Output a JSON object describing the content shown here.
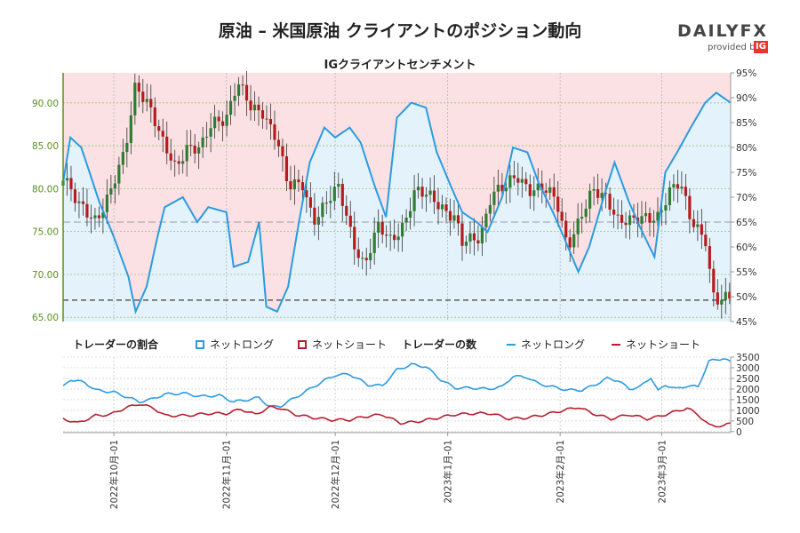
{
  "header": {
    "title": "原油 – 米国原油 クライアントのポジション動向",
    "subtitle": "IGクライアントセンチメント"
  },
  "logo": {
    "word_a": "DAILY",
    "word_b": "FX",
    "provided_by": "provided by",
    "ig": "IG"
  },
  "legend": {
    "ratio_title": "トレーダーの割合",
    "ratio_long": "ネットロング",
    "ratio_short": "ネットショート",
    "count_title": "トレーダーの数",
    "count_long": "ネットロング",
    "count_short": "ネットショート"
  },
  "colors": {
    "long_line": "#2b9be0",
    "short_line": "#b81d2e",
    "bull_candle": "#2e7d32",
    "bear_candle": "#b71c1c",
    "short_zone": "#fbe1e3",
    "long_zone": "#e4f3fb",
    "price_axis": "#5a8f1e"
  },
  "chart_data": [
    {
      "type": "candlestick",
      "title": "IGクライアントセンチメント",
      "left_axis": {
        "ylim": [
          64.5,
          93.5
        ],
        "ticks": [
          "65.00",
          "70.00",
          "75.00",
          "80.00",
          "85.00",
          "90.00"
        ]
      },
      "right_axis": {
        "ylim": [
          45,
          95
        ],
        "ticks": [
          "45%",
          "50%",
          "55%",
          "60%",
          "65%",
          "70%",
          "75%",
          "80%",
          "85%",
          "90%",
          "95%"
        ]
      },
      "reference_lines": [
        {
          "price": 67.0,
          "style": "dashed"
        },
        {
          "pct": 65,
          "style": "dashed"
        }
      ],
      "x_dates": [
        "2022-09-17",
        "2023-03-20"
      ],
      "price_anchors": [
        [
          "2022-09-17",
          81.5
        ],
        [
          "2022-09-21",
          78.0
        ],
        [
          "2022-09-26",
          76.5
        ],
        [
          "2022-09-30",
          79.5
        ],
        [
          "2022-10-04",
          84.0
        ],
        [
          "2022-10-07",
          92.5
        ],
        [
          "2022-10-11",
          89.5
        ],
        [
          "2022-10-14",
          85.5
        ],
        [
          "2022-10-18",
          82.5
        ],
        [
          "2022-10-21",
          85.0
        ],
        [
          "2022-10-25",
          84.5
        ],
        [
          "2022-10-28",
          87.5
        ],
        [
          "2022-11-01",
          88.5
        ],
        [
          "2022-11-04",
          92.5
        ],
        [
          "2022-11-08",
          89.0
        ],
        [
          "2022-11-11",
          89.0
        ],
        [
          "2022-11-15",
          86.0
        ],
        [
          "2022-11-18",
          80.0
        ],
        [
          "2022-11-22",
          80.5
        ],
        [
          "2022-11-25",
          76.5
        ],
        [
          "2022-11-29",
          78.5
        ],
        [
          "2022-12-02",
          80.0
        ],
        [
          "2022-12-06",
          74.0
        ],
        [
          "2022-12-09",
          71.0
        ],
        [
          "2022-12-13",
          75.5
        ],
        [
          "2022-12-16",
          74.0
        ],
        [
          "2022-12-20",
          76.0
        ],
        [
          "2022-12-23",
          79.5
        ],
        [
          "2022-12-28",
          79.0
        ],
        [
          "2023-01-03",
          76.5
        ],
        [
          "2023-01-05",
          73.5
        ],
        [
          "2023-01-10",
          74.5
        ],
        [
          "2023-01-13",
          79.5
        ],
        [
          "2023-01-17",
          80.0
        ],
        [
          "2023-01-20",
          81.5
        ],
        [
          "2023-01-24",
          80.0
        ],
        [
          "2023-01-27",
          80.0
        ],
        [
          "2023-01-31",
          78.5
        ],
        [
          "2023-02-03",
          73.5
        ],
        [
          "2023-02-07",
          77.0
        ],
        [
          "2023-02-10",
          79.5
        ],
        [
          "2023-02-14",
          79.0
        ],
        [
          "2023-02-17",
          76.5
        ],
        [
          "2023-02-21",
          76.0
        ],
        [
          "2023-02-24",
          76.5
        ],
        [
          "2023-02-28",
          77.0
        ],
        [
          "2023-03-03",
          79.5
        ],
        [
          "2023-03-06",
          80.5
        ],
        [
          "2023-03-09",
          76.5
        ],
        [
          "2023-03-13",
          74.5
        ],
        [
          "2023-03-15",
          67.5
        ],
        [
          "2023-03-17",
          66.5
        ],
        [
          "2023-03-20",
          67.5
        ]
      ],
      "net_long_pct_anchors": [
        [
          "2022-09-17",
          73
        ],
        [
          "2022-09-19",
          82
        ],
        [
          "2022-09-22",
          80
        ],
        [
          "2022-09-27",
          69
        ],
        [
          "2022-10-01",
          62
        ],
        [
          "2022-10-05",
          54
        ],
        [
          "2022-10-07",
          47
        ],
        [
          "2022-10-10",
          52
        ],
        [
          "2022-10-13",
          62
        ],
        [
          "2022-10-15",
          68
        ],
        [
          "2022-10-20",
          70
        ],
        [
          "2022-10-24",
          65
        ],
        [
          "2022-10-27",
          68
        ],
        [
          "2022-11-01",
          67
        ],
        [
          "2022-11-03",
          56
        ],
        [
          "2022-11-07",
          57
        ],
        [
          "2022-11-10",
          65
        ],
        [
          "2022-11-12",
          48
        ],
        [
          "2022-11-15",
          47
        ],
        [
          "2022-11-18",
          52
        ],
        [
          "2022-11-21",
          65
        ],
        [
          "2022-11-24",
          77
        ],
        [
          "2022-11-28",
          84
        ],
        [
          "2022-12-01",
          82
        ],
        [
          "2022-12-05",
          84
        ],
        [
          "2022-12-08",
          81
        ],
        [
          "2022-12-12",
          72
        ],
        [
          "2022-12-15",
          66
        ],
        [
          "2022-12-18",
          86
        ],
        [
          "2022-12-22",
          89
        ],
        [
          "2022-12-26",
          88
        ],
        [
          "2022-12-29",
          79
        ],
        [
          "2023-01-02",
          72
        ],
        [
          "2023-01-05",
          67
        ],
        [
          "2023-01-09",
          65
        ],
        [
          "2023-01-12",
          63
        ],
        [
          "2023-01-16",
          70
        ],
        [
          "2023-01-19",
          80
        ],
        [
          "2023-01-23",
          79
        ],
        [
          "2023-01-26",
          73
        ],
        [
          "2023-01-30",
          67
        ],
        [
          "2023-02-02",
          62
        ],
        [
          "2023-02-06",
          55
        ],
        [
          "2023-02-09",
          60
        ],
        [
          "2023-02-13",
          70
        ],
        [
          "2023-02-16",
          77
        ],
        [
          "2023-02-20",
          69
        ],
        [
          "2023-02-23",
          64
        ],
        [
          "2023-02-27",
          58
        ],
        [
          "2023-03-02",
          75
        ],
        [
          "2023-03-06",
          80
        ],
        [
          "2023-03-09",
          84
        ],
        [
          "2023-03-13",
          89
        ],
        [
          "2023-03-16",
          91
        ],
        [
          "2023-03-20",
          89
        ]
      ]
    },
    {
      "type": "line",
      "title": "トレーダーの数",
      "ylim": [
        -50,
        3500
      ],
      "ticks": [
        "0",
        "500",
        "1000",
        "1500",
        "2000",
        "2500",
        "3000",
        "3500"
      ],
      "x_ticks": [
        "2022年10月-01",
        "2022年11月-01",
        "2022年12月-01",
        "2023年1月-01",
        "2023年2月-01",
        "2023年3月-01"
      ],
      "x_dates": [
        "2022-09-17",
        "2023-03-20"
      ],
      "series": [
        {
          "name": "ネットロング",
          "anchors": [
            [
              "2022-09-17",
              2100
            ],
            [
              "2022-09-19",
              2450
            ],
            [
              "2022-09-23",
              2300
            ],
            [
              "2022-09-26",
              1950
            ],
            [
              "2022-10-01",
              1850
            ],
            [
              "2022-10-05",
              1600
            ],
            [
              "2022-10-08",
              1400
            ],
            [
              "2022-10-11",
              1500
            ],
            [
              "2022-10-15",
              1750
            ],
            [
              "2022-10-20",
              1800
            ],
            [
              "2022-10-25",
              1650
            ],
            [
              "2022-10-30",
              1700
            ],
            [
              "2022-11-03",
              1400
            ],
            [
              "2022-11-07",
              1500
            ],
            [
              "2022-11-10",
              1600
            ],
            [
              "2022-11-13",
              1150
            ],
            [
              "2022-11-16",
              1200
            ],
            [
              "2022-11-19",
              1500
            ],
            [
              "2022-11-24",
              2000
            ],
            [
              "2022-11-28",
              2400
            ],
            [
              "2022-12-01",
              2650
            ],
            [
              "2022-12-05",
              2700
            ],
            [
              "2022-12-10",
              2200
            ],
            [
              "2022-12-14",
              2150
            ],
            [
              "2022-12-18",
              2900
            ],
            [
              "2022-12-22",
              3150
            ],
            [
              "2022-12-26",
              3050
            ],
            [
              "2022-12-30",
              2450
            ],
            [
              "2023-01-03",
              2050
            ],
            [
              "2023-01-08",
              2050
            ],
            [
              "2023-01-12",
              2000
            ],
            [
              "2023-01-16",
              2100
            ],
            [
              "2023-01-19",
              2600
            ],
            [
              "2023-01-23",
              2550
            ],
            [
              "2023-01-26",
              2250
            ],
            [
              "2023-01-30",
              2100
            ],
            [
              "2023-02-03",
              1950
            ],
            [
              "2023-02-07",
              1950
            ],
            [
              "2023-02-10",
              2150
            ],
            [
              "2023-02-14",
              2500
            ],
            [
              "2023-02-17",
              2400
            ],
            [
              "2023-02-20",
              2000
            ],
            [
              "2023-02-23",
              2100
            ],
            [
              "2023-02-26",
              2550
            ],
            [
              "2023-02-28",
              1900
            ],
            [
              "2023-03-02",
              2200
            ],
            [
              "2023-03-05",
              2000
            ],
            [
              "2023-03-08",
              2150
            ],
            [
              "2023-03-11",
              2100
            ],
            [
              "2023-03-14",
              3300
            ],
            [
              "2023-03-18",
              3450
            ],
            [
              "2023-03-20",
              3250
            ]
          ]
        },
        {
          "name": "ネットショート",
          "anchors": [
            [
              "2022-09-17",
              600
            ],
            [
              "2022-09-21",
              400
            ],
            [
              "2022-09-26",
              750
            ],
            [
              "2022-09-30",
              800
            ],
            [
              "2022-10-04",
              1100
            ],
            [
              "2022-10-08",
              1300
            ],
            [
              "2022-10-12",
              1100
            ],
            [
              "2022-10-15",
              750
            ],
            [
              "2022-10-21",
              750
            ],
            [
              "2022-10-27",
              850
            ],
            [
              "2022-11-01",
              850
            ],
            [
              "2022-11-05",
              1050
            ],
            [
              "2022-11-09",
              800
            ],
            [
              "2022-11-13",
              1150
            ],
            [
              "2022-11-16",
              1100
            ],
            [
              "2022-11-20",
              800
            ],
            [
              "2022-11-25",
              650
            ],
            [
              "2022-11-30",
              550
            ],
            [
              "2022-12-05",
              550
            ],
            [
              "2022-12-09",
              700
            ],
            [
              "2022-12-14",
              800
            ],
            [
              "2022-12-19",
              400
            ],
            [
              "2022-12-23",
              450
            ],
            [
              "2022-12-28",
              600
            ],
            [
              "2023-01-03",
              800
            ],
            [
              "2023-01-08",
              850
            ],
            [
              "2023-01-13",
              850
            ],
            [
              "2023-01-18",
              600
            ],
            [
              "2023-01-23",
              650
            ],
            [
              "2023-01-28",
              800
            ],
            [
              "2023-02-02",
              1000
            ],
            [
              "2023-02-06",
              1150
            ],
            [
              "2023-02-10",
              850
            ],
            [
              "2023-02-15",
              600
            ],
            [
              "2023-02-20",
              800
            ],
            [
              "2023-02-25",
              600
            ],
            [
              "2023-02-28",
              700
            ],
            [
              "2023-03-04",
              900
            ],
            [
              "2023-03-08",
              1100
            ],
            [
              "2023-03-11",
              800
            ],
            [
              "2023-03-14",
              300
            ],
            [
              "2023-03-18",
              250
            ],
            [
              "2023-03-20",
              400
            ]
          ]
        }
      ]
    }
  ]
}
